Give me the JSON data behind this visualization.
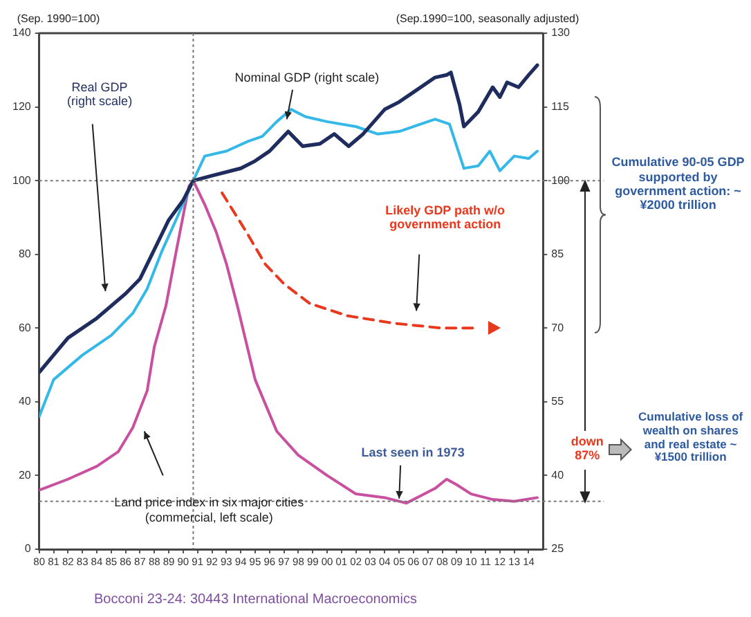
{
  "chart_data": {
    "type": "line",
    "ylabel": "(Sep. 1990=100)",
    "y2label": "(Sep.1990=100, seasonally adjusted)",
    "marker": "none",
    "legend": false,
    "xlim": [
      1980,
      2015
    ],
    "xticks": [
      {
        "value": 1980,
        "label": "80"
      },
      {
        "value": 1981,
        "label": "81"
      },
      {
        "value": 1982,
        "label": "82"
      },
      {
        "value": 1983,
        "label": "83"
      },
      {
        "value": 1984,
        "label": "84"
      },
      {
        "value": 1985,
        "label": "85"
      },
      {
        "value": 1986,
        "label": "86"
      },
      {
        "value": 1987,
        "label": "87"
      },
      {
        "value": 1988,
        "label": "88"
      },
      {
        "value": 1989,
        "label": "89"
      },
      {
        "value": 1990,
        "label": "90"
      },
      {
        "value": 1991,
        "label": "91"
      },
      {
        "value": 1992,
        "label": "92"
      },
      {
        "value": 1993,
        "label": "93"
      },
      {
        "value": 1994,
        "label": "94"
      },
      {
        "value": 1995,
        "label": "95"
      },
      {
        "value": 1996,
        "label": "96"
      },
      {
        "value": 1997,
        "label": "97"
      },
      {
        "value": 1998,
        "label": "98"
      },
      {
        "value": 1999,
        "label": "99"
      },
      {
        "value": 2000,
        "label": "00"
      },
      {
        "value": 2001,
        "label": "01"
      },
      {
        "value": 2002,
        "label": "02"
      },
      {
        "value": 2003,
        "label": "03"
      },
      {
        "value": 2004,
        "label": "04"
      },
      {
        "value": 2005,
        "label": "05"
      },
      {
        "value": 2006,
        "label": "06"
      },
      {
        "value": 2007,
        "label": "07"
      },
      {
        "value": 2008,
        "label": "08"
      },
      {
        "value": 2009,
        "label": "09"
      },
      {
        "value": 2010,
        "label": "10"
      },
      {
        "value": 2011,
        "label": "11"
      },
      {
        "value": 2012,
        "label": "12"
      },
      {
        "value": 2013,
        "label": "13"
      },
      {
        "value": 2014,
        "label": "14"
      }
    ],
    "ylim": [
      0,
      140
    ],
    "yticks": [
      0,
      20,
      40,
      60,
      80,
      100,
      120,
      140
    ],
    "y2lim": [
      25,
      130
    ],
    "y2ticks": [
      25,
      40,
      55,
      70,
      85,
      100,
      115,
      130
    ],
    "series": [
      {
        "name": "Real GDP (right scale)",
        "color": "#1f2d5e",
        "axis": "y2",
        "line_style": "solid",
        "x": [
          1980,
          1982,
          1984,
          1986,
          1987,
          1988,
          1989,
          1990,
          1990.7,
          1992,
          1994,
          1995,
          1996,
          1997.3,
          1998.3,
          1999.5,
          2000.5,
          2001.5,
          2002.5,
          2004,
          2005,
          2006,
          2007.5,
          2008.3,
          2008.6,
          2009.2,
          2009.5,
          2010.5,
          2011.5,
          2012,
          2012.5,
          2013.3,
          2014,
          2014.6
        ],
        "values": [
          61,
          68,
          72,
          77,
          80,
          86,
          92,
          96,
          100,
          101,
          102.5,
          104,
          106,
          110,
          107,
          107.5,
          109.5,
          107,
          109.5,
          114.5,
          116,
          118,
          121,
          121.5,
          122,
          115.5,
          111,
          114,
          119,
          117,
          120,
          119,
          121.5,
          123.5
        ]
      },
      {
        "name": "Nominal GDP (right scale)",
        "color": "#33b8e8",
        "axis": "y2",
        "line_style": "solid",
        "x": [
          1980,
          1981,
          1983,
          1985,
          1986.5,
          1987.5,
          1988.5,
          1989.5,
          1990.7,
          1991.5,
          1993,
          1994.5,
          1995.5,
          1996.5,
          1997.5,
          1998.5,
          2000,
          2002,
          2003.5,
          2005,
          2006.5,
          2007.5,
          2008.5,
          2009.5,
          2010.5,
          2011.3,
          2012,
          2013,
          2014,
          2014.6
        ],
        "values": [
          52,
          59.5,
          64.5,
          68.5,
          73,
          78,
          85.5,
          92,
          100,
          105,
          106,
          108,
          109,
          112,
          114.5,
          113,
          112,
          111,
          109.5,
          110,
          111.5,
          112.5,
          111.5,
          102.5,
          103,
          106,
          102,
          105,
          104.5,
          106
        ]
      },
      {
        "name": "Land price index in six major cities (commercial, left scale)",
        "color": "#c9509f",
        "axis": "y",
        "line_style": "solid",
        "x": [
          1980,
          1982,
          1984,
          1985.5,
          1986.5,
          1987.5,
          1988,
          1988.8,
          1989.5,
          1990.4,
          1990.7,
          1991.5,
          1992.3,
          1993,
          1993.8,
          1995,
          1996.5,
          1998,
          2000,
          2002,
          2004,
          2005.5,
          2006.5,
          2007.5,
          2008.3,
          2009,
          2010,
          2011.5,
          2013,
          2014.6
        ],
        "values": [
          16,
          19,
          22.5,
          26.5,
          33,
          43,
          55,
          66,
          80.5,
          98.5,
          100,
          93.5,
          86,
          77.5,
          65.5,
          46,
          32,
          25.5,
          20,
          15,
          14,
          12.5,
          14.5,
          16.5,
          19,
          17.5,
          15,
          13.5,
          13,
          14
        ]
      },
      {
        "name": "Likely GDP path w/o government action",
        "color": "#e8381e",
        "axis": "y2",
        "line_style": "dashed",
        "x": [
          1992.7,
          1994.4,
          1995.7,
          1997,
          1998.8,
          2001.4,
          2004.6,
          2007.9,
          2010.4
        ],
        "values": [
          97.5,
          89.5,
          83,
          79,
          75,
          72.5,
          71,
          70,
          70
        ]
      }
    ],
    "ref_lines": [
      {
        "axis": "x",
        "value": 1990.7,
        "color": "#777777",
        "line_style": "dotted"
      },
      {
        "axis": "y2",
        "value": 100,
        "color": "#777777",
        "line_style": "dotted"
      },
      {
        "axis": "y",
        "value": 13,
        "color": "#777777",
        "line_style": "dotted"
      }
    ],
    "annotations": [
      {
        "text": "Last seen in 1973",
        "x": 2005,
        "y": 13
      },
      "Cumulative 90-05 GDP supported by government action: ~ ¥2000 trillion",
      "down 87%",
      "Cumulative loss of wealth on shares and real estate ~ ¥1500 trillion",
      "Bocconi 23-24: 30443 International Macroeconomics"
    ]
  }
}
